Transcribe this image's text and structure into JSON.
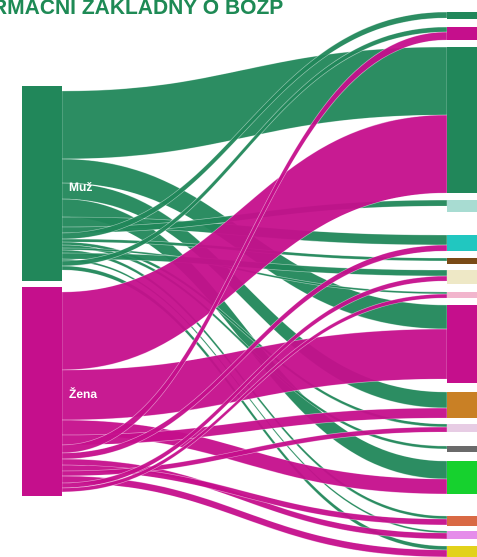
{
  "title": "RMAČNÍ ZÁKLADNY O BOZP",
  "colors": {
    "title": "#1e8a55",
    "men": "#21875a",
    "women": "#c50f8c",
    "background": "#ffffff",
    "source_label": "#ffffff"
  },
  "sources": [
    {
      "key": "men",
      "label": "Muž",
      "color": "#21875a"
    },
    {
      "key": "women",
      "label": "Žena",
      "color": "#c50f8c"
    }
  ],
  "targets": [
    {
      "color": "#21875a"
    },
    {
      "color": "#c50f8c"
    },
    {
      "color": "#21875a"
    },
    {
      "color": "#a8dcd2"
    },
    {
      "color": "#21c7c0"
    },
    {
      "color": "#7a4a16"
    },
    {
      "color": "#eee8c6"
    },
    {
      "color": "#f2b5cd"
    },
    {
      "color": "#c50f8c"
    },
    {
      "color": "#c98025"
    },
    {
      "color": "#e7cce4"
    },
    {
      "color": "#6a6a6a"
    },
    {
      "color": "#16d12e"
    },
    {
      "color": "#d96944"
    },
    {
      "color": "#e58cea"
    },
    {
      "color": "#e2d21a"
    }
  ]
}
